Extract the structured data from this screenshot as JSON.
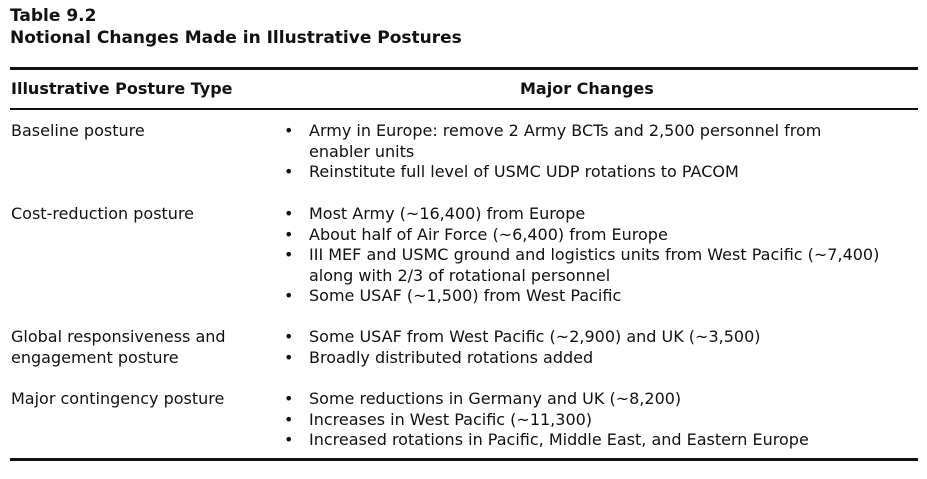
{
  "table": {
    "label": "Table 9.2",
    "title": "Notional Changes Made in Illustrative Postures",
    "headers": {
      "posture_type": "Illustrative Posture Type",
      "changes": "Major Changes"
    },
    "rows": [
      {
        "posture": "Baseline posture",
        "changes": [
          "Army in Europe: remove 2 Army BCTs and 2,500 personnel from enabler units",
          "Reinstitute full level of USMC UDP rotations to PACOM"
        ]
      },
      {
        "posture": "Cost-reduction posture",
        "changes": [
          "Most Army (~16,400) from Europe",
          "About half of Air Force (~6,400) from Europe",
          "III MEF and USMC ground and logistics units from West Pacific (~7,400) along with 2/3 of rotational personnel",
          "Some USAF (~1,500) from West Pacific"
        ]
      },
      {
        "posture": "Global responsiveness and engagement posture",
        "changes": [
          "Some USAF from West Pacific (~2,900) and UK (~3,500)",
          "Broadly distributed rotations added"
        ]
      },
      {
        "posture": "Major contingency posture",
        "changes": [
          "Some reductions in Germany and UK (~8,200)",
          "Increases in West Pacific (~11,300)",
          "Increased rotations in Pacific, Middle East, and Eastern Europe"
        ]
      }
    ]
  }
}
